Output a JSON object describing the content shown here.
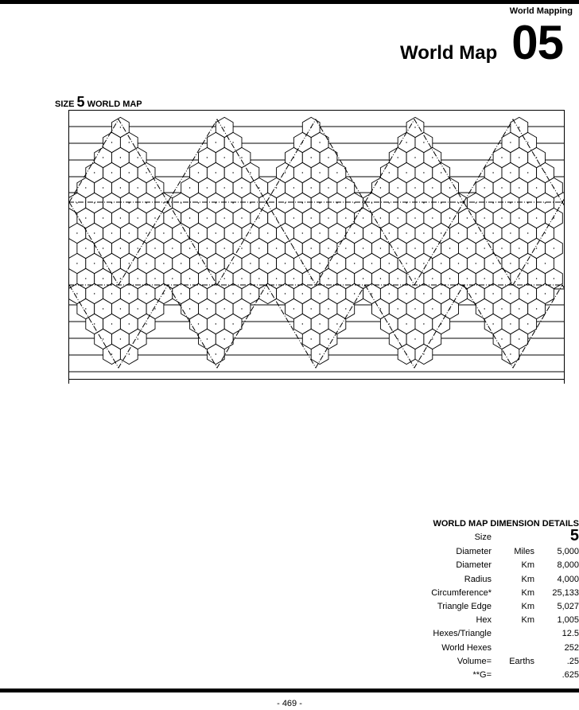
{
  "header": {
    "section": "World Mapping",
    "title": "World Map",
    "chapter": "05"
  },
  "map": {
    "caption_prefix": "SIZE",
    "caption_size": "5",
    "caption_suffix": "WORLD MAP"
  },
  "details": {
    "title": "WORLD MAP DIMENSION DETAILS",
    "size_label": "Size",
    "size_value": "5",
    "rows": [
      {
        "label": "Diameter",
        "unit": "Miles",
        "value": "5,000"
      },
      {
        "label": "Diameter",
        "unit": "Km",
        "value": "8,000"
      },
      {
        "label": "Radius",
        "unit": "Km",
        "value": "4,000"
      },
      {
        "label": "Circumference*",
        "unit": "Km",
        "value": "25,133"
      },
      {
        "label": "Triangle Edge",
        "unit": "Km",
        "value": "5,027"
      },
      {
        "label": "Hex",
        "unit": "Km",
        "value": "1,005"
      },
      {
        "label": "Hexes/Triangle",
        "unit": "",
        "value": "12.5"
      },
      {
        "label": "World Hexes",
        "unit": "",
        "value": "252"
      },
      {
        "label": "Volume=",
        "unit": "Earths",
        "value": ".25"
      },
      {
        "label": "**G=",
        "unit": "",
        "value": ".625"
      }
    ]
  },
  "footer": {
    "page_number": "- 469 -"
  }
}
